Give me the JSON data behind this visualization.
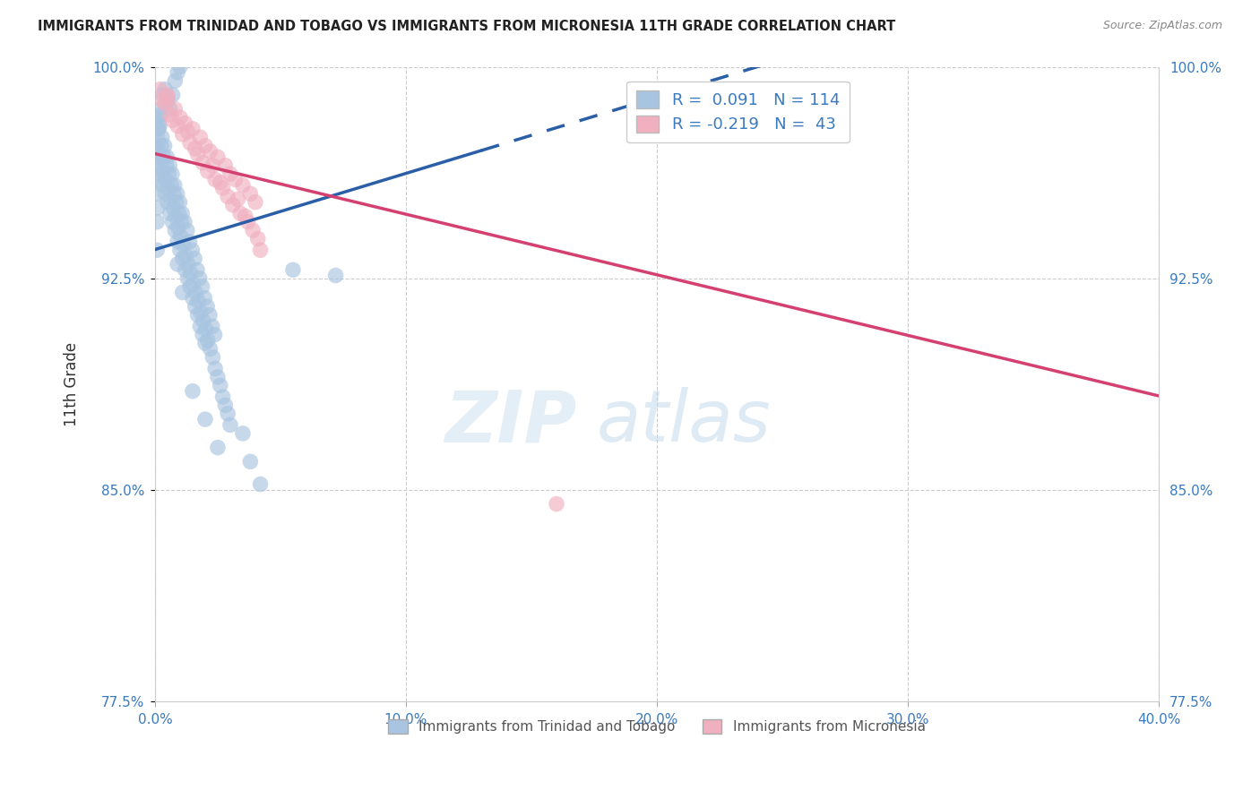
{
  "title": "IMMIGRANTS FROM TRINIDAD AND TOBAGO VS IMMIGRANTS FROM MICRONESIA 11TH GRADE CORRELATION CHART",
  "source": "Source: ZipAtlas.com",
  "ylabel_label": "11th Grade",
  "xmin": 0.0,
  "xmax": 40.0,
  "ymin": 77.5,
  "ymax": 100.0,
  "yticks": [
    77.5,
    85.0,
    92.5,
    100.0
  ],
  "xticks": [
    0.0,
    10.0,
    20.0,
    30.0,
    40.0
  ],
  "blue_R": 0.091,
  "blue_N": 114,
  "pink_R": -0.219,
  "pink_N": 43,
  "blue_color": "#a8c4e0",
  "blue_line_color": "#2a5fa8",
  "pink_color": "#f0b0c0",
  "pink_line_color": "#d44070",
  "blue_label": "Immigrants from Trinidad and Tobago",
  "pink_label": "Immigrants from Micronesia",
  "watermark_zip": "ZIP",
  "watermark_atlas": "atlas",
  "blue_scatter_x": [
    0.1,
    0.2,
    0.3,
    0.4,
    0.5,
    0.6,
    0.7,
    0.8,
    0.9,
    1.0,
    0.15,
    0.25,
    0.35,
    0.45,
    0.55,
    0.65,
    0.75,
    0.85,
    0.95,
    1.05,
    0.1,
    0.2,
    0.3,
    0.4,
    0.5,
    0.6,
    0.7,
    0.8,
    0.9,
    1.0,
    1.1,
    1.2,
    1.3,
    1.4,
    1.5,
    1.6,
    1.7,
    1.8,
    1.9,
    2.0,
    0.12,
    0.22,
    0.32,
    0.42,
    0.52,
    0.62,
    0.72,
    0.82,
    0.92,
    1.02,
    1.12,
    1.22,
    1.32,
    1.42,
    1.52,
    1.62,
    1.72,
    1.82,
    1.92,
    2.02,
    2.1,
    2.2,
    2.3,
    2.4,
    2.5,
    2.6,
    2.7,
    2.8,
    2.9,
    3.0,
    0.08,
    0.18,
    0.28,
    0.38,
    0.48,
    0.58,
    0.68,
    0.78,
    0.88,
    0.98,
    1.08,
    1.18,
    1.28,
    1.38,
    1.48,
    1.58,
    1.68,
    1.78,
    1.88,
    1.98,
    2.08,
    2.18,
    2.28,
    2.38,
    3.5,
    3.8,
    4.2,
    1.5,
    2.0,
    2.5,
    0.05,
    0.05,
    0.05,
    0.08,
    0.08,
    0.1,
    0.1,
    0.1,
    0.15,
    0.2,
    5.5,
    7.2,
    0.9,
    1.1
  ],
  "blue_scatter_y": [
    97.5,
    98.5,
    99.0,
    99.2,
    98.8,
    98.5,
    99.0,
    99.5,
    99.8,
    100.0,
    97.8,
    97.2,
    96.8,
    96.5,
    96.2,
    95.8,
    95.5,
    95.2,
    94.8,
    94.5,
    96.5,
    96.2,
    95.8,
    95.5,
    95.2,
    94.8,
    94.5,
    94.2,
    93.8,
    93.5,
    93.2,
    92.8,
    92.5,
    92.2,
    91.8,
    91.5,
    91.2,
    90.8,
    90.5,
    90.2,
    97.0,
    96.7,
    96.3,
    96.0,
    95.7,
    95.3,
    95.0,
    94.7,
    94.3,
    94.0,
    93.7,
    93.3,
    93.0,
    92.7,
    92.3,
    92.0,
    91.7,
    91.3,
    91.0,
    90.7,
    90.3,
    90.0,
    89.7,
    89.3,
    89.0,
    88.7,
    88.3,
    88.0,
    87.7,
    87.3,
    98.2,
    97.9,
    97.5,
    97.2,
    96.8,
    96.5,
    96.2,
    95.8,
    95.5,
    95.2,
    94.8,
    94.5,
    94.2,
    93.8,
    93.5,
    93.2,
    92.8,
    92.5,
    92.2,
    91.8,
    91.5,
    91.2,
    90.8,
    90.5,
    87.0,
    86.0,
    85.2,
    88.5,
    87.5,
    86.5,
    96.8,
    97.2,
    95.5,
    94.5,
    93.5,
    96.0,
    95.0,
    97.8,
    98.0,
    98.3,
    92.8,
    92.6,
    93.0,
    92.0
  ],
  "pink_scatter_x": [
    0.5,
    0.8,
    1.0,
    1.2,
    1.5,
    1.8,
    2.0,
    2.2,
    2.5,
    2.8,
    3.0,
    3.2,
    3.5,
    3.8,
    4.0,
    0.3,
    0.6,
    0.9,
    1.1,
    1.4,
    1.7,
    1.9,
    2.1,
    2.4,
    2.7,
    2.9,
    3.1,
    3.4,
    3.7,
    3.9,
    4.1,
    0.4,
    0.7,
    1.3,
    1.6,
    2.3,
    2.6,
    3.3,
    3.6,
    4.2,
    0.2,
    0.5,
    16.0
  ],
  "pink_scatter_y": [
    99.0,
    98.5,
    98.2,
    98.0,
    97.8,
    97.5,
    97.2,
    97.0,
    96.8,
    96.5,
    96.2,
    96.0,
    95.8,
    95.5,
    95.2,
    98.8,
    98.3,
    97.9,
    97.6,
    97.3,
    96.9,
    96.6,
    96.3,
    96.0,
    95.7,
    95.4,
    95.1,
    94.8,
    94.5,
    94.2,
    93.9,
    98.7,
    98.1,
    97.7,
    97.1,
    96.5,
    95.9,
    95.3,
    94.7,
    93.5,
    99.2,
    98.9,
    84.5
  ]
}
